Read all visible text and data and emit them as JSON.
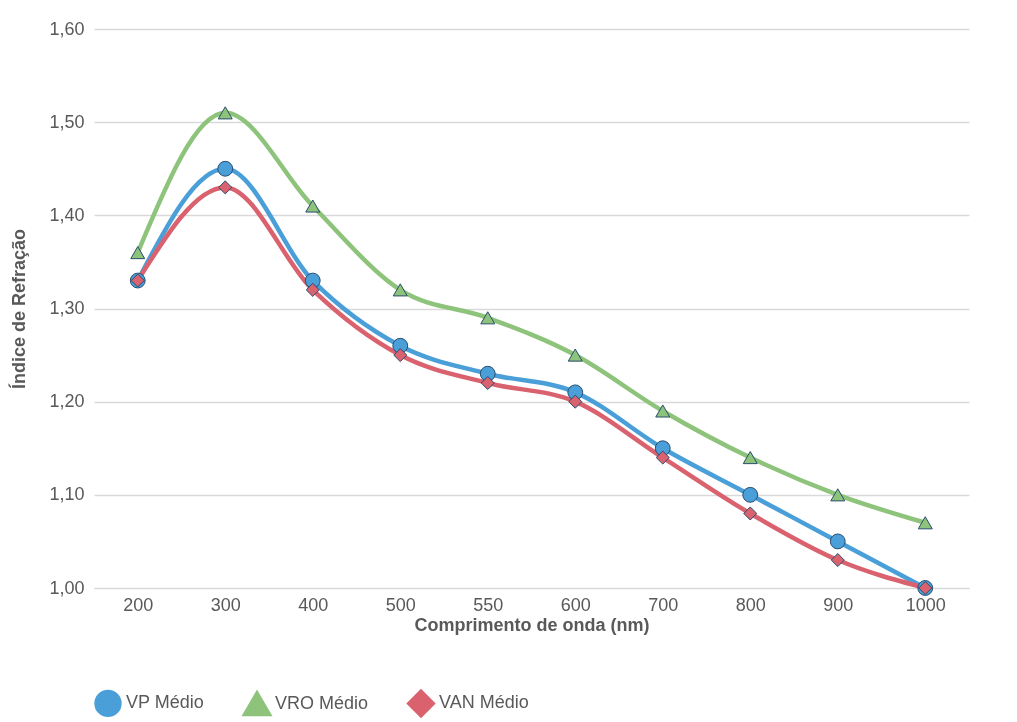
{
  "chart_data": {
    "type": "line",
    "xlabel": "Comprimento de onda (nm)",
    "ylabel": "Índice de Refração",
    "categories": [
      "200",
      "300",
      "400",
      "500",
      "550",
      "600",
      "700",
      "800",
      "900",
      "1000"
    ],
    "series": [
      {
        "name": "VP Médio",
        "color": "#4a9fd8",
        "marker": "circle",
        "values": [
          1.33,
          1.45,
          1.33,
          1.26,
          1.23,
          1.21,
          1.15,
          1.1,
          1.05,
          1.0
        ]
      },
      {
        "name": "VRO Médio",
        "color": "#8dc37a",
        "marker": "triangle",
        "values": [
          1.36,
          1.51,
          1.41,
          1.32,
          1.29,
          1.25,
          1.19,
          1.14,
          1.1,
          1.07
        ]
      },
      {
        "name": "VAN Médio",
        "color": "#d9626e",
        "marker": "diamond",
        "values": [
          1.33,
          1.43,
          1.32,
          1.25,
          1.22,
          1.2,
          1.14,
          1.08,
          1.03,
          1.0
        ]
      }
    ],
    "ylim": [
      1.0,
      1.6
    ],
    "yticks": [
      {
        "value": 1.0,
        "label": "1,00"
      },
      {
        "value": 1.1,
        "label": "1,10"
      },
      {
        "value": 1.2,
        "label": "1,20"
      },
      {
        "value": 1.3,
        "label": "1,30"
      },
      {
        "value": 1.4,
        "label": "1,40"
      },
      {
        "value": 1.5,
        "label": "1,50"
      },
      {
        "value": 1.6,
        "label": "1,60"
      }
    ],
    "grid": "y",
    "legend": "bottom"
  }
}
